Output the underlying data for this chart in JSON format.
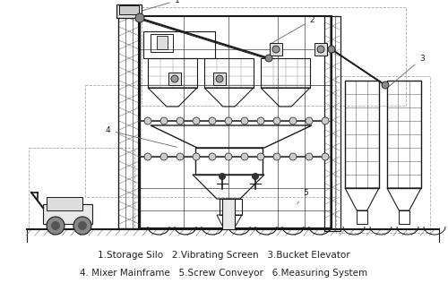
{
  "caption_line1": "1.Storage Silo   2.Vibrating Screen   3.Bucket Elevator",
  "caption_line2": "4. Mixer Mainframe   5.Screw Conveyor   6.Measuring System",
  "bg_color": "#ffffff",
  "line_color": "#1a1a1a",
  "caption_fontsize": 7.5,
  "caption_color": "#222222",
  "fig_w": 5.0,
  "fig_h": 3.35,
  "dpi": 100
}
